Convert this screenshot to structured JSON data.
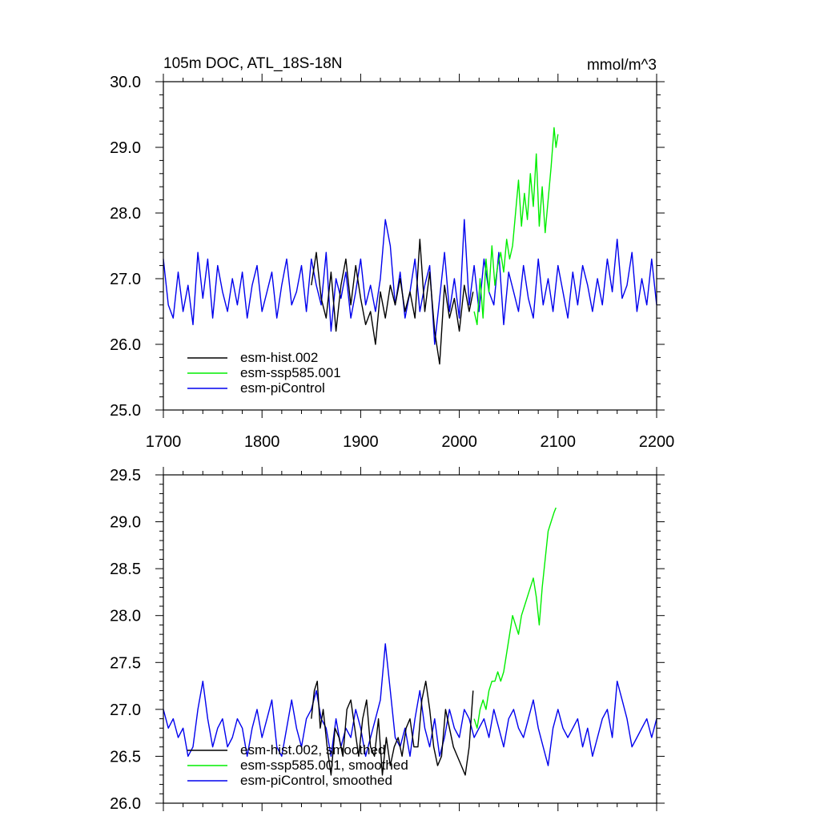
{
  "colors": {
    "hist": "#000000",
    "ssp": "#00ee00",
    "pi": "#0000ee"
  },
  "chart_data": [
    {
      "type": "line",
      "title": "105m DOC, ATL_18S-18N",
      "units": "mmol/m^3",
      "xlim": [
        1700,
        2200
      ],
      "ylim": [
        25.0,
        30.0
      ],
      "xticks": [
        "1700",
        "1800",
        "1900",
        "2000",
        "2100",
        "2200"
      ],
      "yticks": [
        "25.0",
        "26.0",
        "27.0",
        "28.0",
        "29.0",
        "30.0"
      ],
      "legend_position": "lower-left",
      "series": [
        {
          "name": "esm-hist.002",
          "color_key": "hist",
          "x": [
            1850,
            1855,
            1860,
            1865,
            1870,
            1875,
            1880,
            1885,
            1890,
            1895,
            1900,
            1905,
            1910,
            1915,
            1920,
            1925,
            1930,
            1935,
            1940,
            1945,
            1950,
            1955,
            1960,
            1965,
            1970,
            1975,
            1980,
            1985,
            1990,
            1995,
            2000,
            2005,
            2010,
            2014
          ],
          "values": [
            26.9,
            27.4,
            26.7,
            26.4,
            27.1,
            26.2,
            26.9,
            27.3,
            26.6,
            27.2,
            26.7,
            26.3,
            26.5,
            26.0,
            26.8,
            26.4,
            26.9,
            26.6,
            27.0,
            26.5,
            26.8,
            26.4,
            27.6,
            26.5,
            27.1,
            26.2,
            25.7,
            26.9,
            26.4,
            26.7,
            26.2,
            26.9,
            26.5,
            26.8
          ]
        },
        {
          "name": "esm-ssp585.001",
          "color_key": "ssp",
          "x": [
            2015,
            2018,
            2021,
            2024,
            2027,
            2030,
            2033,
            2036,
            2039,
            2042,
            2045,
            2048,
            2051,
            2054,
            2057,
            2060,
            2063,
            2066,
            2069,
            2072,
            2075,
            2078,
            2081,
            2084,
            2087,
            2090,
            2093,
            2096,
            2098,
            2100
          ],
          "values": [
            26.5,
            26.3,
            27.0,
            26.4,
            27.3,
            26.8,
            27.5,
            26.9,
            27.2,
            27.4,
            27.1,
            27.6,
            27.3,
            27.5,
            28.0,
            28.5,
            27.8,
            28.3,
            27.9,
            28.6,
            28.1,
            28.9,
            27.8,
            28.4,
            27.7,
            28.2,
            28.7,
            29.3,
            29.0,
            29.2
          ]
        },
        {
          "name": "esm-piControl",
          "color_key": "pi",
          "x": [
            1700,
            1705,
            1710,
            1715,
            1720,
            1725,
            1730,
            1735,
            1740,
            1745,
            1750,
            1755,
            1760,
            1765,
            1770,
            1775,
            1780,
            1785,
            1790,
            1795,
            1800,
            1805,
            1810,
            1815,
            1820,
            1825,
            1830,
            1835,
            1840,
            1845,
            1850,
            1855,
            1860,
            1865,
            1870,
            1875,
            1880,
            1885,
            1890,
            1895,
            1900,
            1905,
            1910,
            1915,
            1920,
            1925,
            1930,
            1935,
            1940,
            1945,
            1950,
            1955,
            1960,
            1965,
            1970,
            1975,
            1980,
            1985,
            1990,
            1995,
            2000,
            2005,
            2010,
            2015,
            2020,
            2025,
            2030,
            2035,
            2040,
            2045,
            2050,
            2055,
            2060,
            2065,
            2070,
            2075,
            2080,
            2085,
            2090,
            2095,
            2100,
            2105,
            2110,
            2115,
            2120,
            2125,
            2130,
            2135,
            2140,
            2145,
            2150,
            2155,
            2160,
            2165,
            2170,
            2175,
            2180,
            2185,
            2190,
            2195,
            2200
          ],
          "values": [
            27.3,
            26.6,
            26.4,
            27.1,
            26.5,
            26.9,
            26.3,
            27.4,
            26.7,
            27.3,
            26.4,
            27.2,
            26.8,
            26.5,
            27.0,
            26.6,
            27.1,
            26.4,
            26.9,
            27.2,
            26.5,
            26.8,
            27.1,
            26.4,
            26.9,
            27.3,
            26.6,
            26.8,
            27.2,
            26.5,
            27.3,
            26.9,
            26.6,
            27.4,
            26.2,
            27.0,
            26.7,
            27.1,
            26.4,
            26.8,
            27.3,
            26.6,
            26.9,
            26.5,
            27.0,
            27.9,
            27.5,
            26.6,
            27.1,
            26.4,
            26.8,
            27.3,
            26.5,
            26.9,
            27.2,
            26.0,
            26.7,
            27.4,
            26.5,
            27.0,
            26.4,
            27.9,
            26.6,
            27.2,
            26.5,
            27.3,
            26.8,
            26.6,
            27.4,
            26.3,
            27.1,
            26.8,
            26.5,
            27.2,
            26.7,
            26.4,
            27.3,
            26.6,
            27.0,
            26.5,
            27.2,
            26.8,
            26.4,
            27.1,
            26.6,
            27.2,
            26.9,
            26.5,
            27.0,
            26.6,
            27.3,
            26.8,
            27.6,
            26.7,
            26.9,
            27.4,
            26.5,
            27.0,
            26.6,
            27.3,
            26.6
          ]
        }
      ]
    },
    {
      "type": "line",
      "title": "",
      "xlim": [
        1700,
        2200
      ],
      "ylim": [
        26.0,
        29.5
      ],
      "yticks": [
        "26.0",
        "26.5",
        "27.0",
        "27.5",
        "28.0",
        "28.5",
        "29.0",
        "29.5"
      ],
      "legend_position": "lower-left",
      "series": [
        {
          "name": "esm-hist.002, smoothed",
          "color_key": "hist",
          "x": [
            1850,
            1853,
            1856,
            1859,
            1862,
            1866,
            1870,
            1874,
            1878,
            1882,
            1886,
            1890,
            1894,
            1898,
            1902,
            1906,
            1910,
            1914,
            1918,
            1922,
            1926,
            1930,
            1934,
            1938,
            1942,
            1946,
            1950,
            1954,
            1958,
            1962,
            1966,
            1970,
            1974,
            1978,
            1982,
            1986,
            1990,
            1994,
            1998,
            2002,
            2006,
            2010,
            2014
          ],
          "values": [
            26.9,
            27.2,
            27.3,
            26.8,
            27.0,
            26.6,
            26.3,
            26.8,
            26.7,
            26.5,
            27.0,
            27.1,
            26.8,
            26.5,
            26.9,
            27.1,
            26.6,
            26.5,
            26.9,
            26.3,
            26.7,
            26.4,
            26.6,
            26.7,
            26.5,
            26.8,
            26.9,
            26.6,
            26.6,
            27.1,
            27.3,
            27.0,
            26.6,
            26.4,
            26.5,
            27.0,
            26.8,
            26.6,
            26.5,
            26.4,
            26.3,
            26.6,
            27.2
          ]
        },
        {
          "name": "esm-ssp585.001, smoothed",
          "color_key": "ssp",
          "x": [
            2015,
            2018,
            2021,
            2024,
            2027,
            2030,
            2033,
            2036,
            2039,
            2042,
            2045,
            2048,
            2051,
            2054,
            2057,
            2060,
            2063,
            2066,
            2069,
            2072,
            2075,
            2078,
            2081,
            2084,
            2087,
            2090,
            2093,
            2096,
            2098
          ],
          "values": [
            26.9,
            26.8,
            27.0,
            27.1,
            27.0,
            27.2,
            27.3,
            27.3,
            27.4,
            27.3,
            27.4,
            27.6,
            27.8,
            28.0,
            27.9,
            27.8,
            28.0,
            28.1,
            28.2,
            28.3,
            28.4,
            28.2,
            27.9,
            28.3,
            28.6,
            28.9,
            29.0,
            29.1,
            29.15
          ]
        },
        {
          "name": "esm-piControl, smoothed",
          "color_key": "pi",
          "x": [
            1700,
            1705,
            1710,
            1715,
            1720,
            1725,
            1730,
            1735,
            1740,
            1745,
            1750,
            1755,
            1760,
            1765,
            1770,
            1775,
            1780,
            1785,
            1790,
            1795,
            1800,
            1805,
            1810,
            1815,
            1820,
            1825,
            1830,
            1835,
            1840,
            1845,
            1850,
            1855,
            1860,
            1865,
            1870,
            1875,
            1880,
            1885,
            1890,
            1895,
            1900,
            1905,
            1910,
            1915,
            1920,
            1925,
            1930,
            1935,
            1940,
            1945,
            1950,
            1955,
            1960,
            1965,
            1970,
            1975,
            1980,
            1985,
            1990,
            1995,
            2000,
            2005,
            2010,
            2015,
            2020,
            2025,
            2030,
            2035,
            2040,
            2045,
            2050,
            2055,
            2060,
            2065,
            2070,
            2075,
            2080,
            2085,
            2090,
            2095,
            2100,
            2105,
            2110,
            2115,
            2120,
            2125,
            2130,
            2135,
            2140,
            2145,
            2150,
            2155,
            2160,
            2165,
            2170,
            2175,
            2180,
            2185,
            2190,
            2195,
            2200
          ],
          "values": [
            27.0,
            26.8,
            26.9,
            26.7,
            26.8,
            26.5,
            26.6,
            27.0,
            27.3,
            26.9,
            26.6,
            26.8,
            26.9,
            26.6,
            26.7,
            26.9,
            26.8,
            26.5,
            26.8,
            27.0,
            26.7,
            26.9,
            27.1,
            26.6,
            26.5,
            26.8,
            27.1,
            26.8,
            26.6,
            26.9,
            27.0,
            27.2,
            26.9,
            26.8,
            26.5,
            26.9,
            26.6,
            26.8,
            26.7,
            27.0,
            26.8,
            26.5,
            26.7,
            26.9,
            27.1,
            27.7,
            27.2,
            26.7,
            26.6,
            26.8,
            26.5,
            26.9,
            27.2,
            26.8,
            26.6,
            26.9,
            26.5,
            26.7,
            27.0,
            26.8,
            26.7,
            27.0,
            26.9,
            26.7,
            26.8,
            26.9,
            26.7,
            27.0,
            26.8,
            26.6,
            26.9,
            27.0,
            26.8,
            26.7,
            26.9,
            27.1,
            26.8,
            26.6,
            26.4,
            26.8,
            27.0,
            26.8,
            26.7,
            26.8,
            26.9,
            26.6,
            26.8,
            26.5,
            26.7,
            26.9,
            27.0,
            26.7,
            27.3,
            27.1,
            26.9,
            26.6,
            26.7,
            26.8,
            26.9,
            26.7,
            26.9
          ]
        }
      ]
    }
  ]
}
